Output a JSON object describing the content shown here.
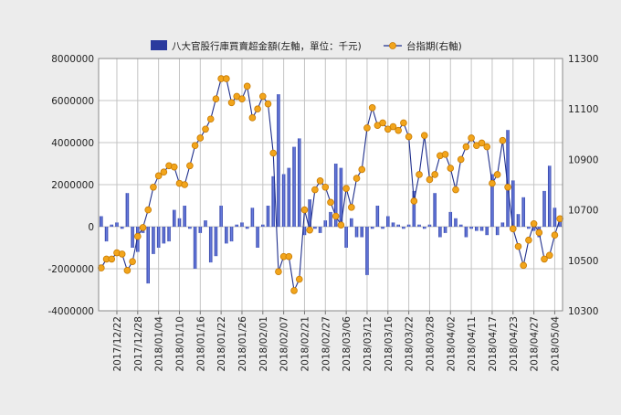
{
  "chart_data": {
    "type": "bar+line",
    "legend": {
      "position": "top",
      "entries": [
        "八大官股行庫買賣超金額(左軸，單位：千元)",
        "台指期(右軸)"
      ]
    },
    "colors": {
      "bar": "#2b3a9e",
      "bar_light": "#6f84e6",
      "line": "#1f2f8c",
      "marker": "#f2a51c",
      "marker_edge": "#c77a00",
      "plot_bg": "#ffffff",
      "page_bg": "#ececec"
    },
    "grid": true,
    "left_axis": {
      "ylim": [
        -4000000,
        8000000
      ],
      "ticks": [
        "-4000000",
        "-2000000",
        "0",
        "2000000",
        "4000000",
        "6000000",
        "8000000"
      ]
    },
    "right_axis": {
      "ylim": [
        10300,
        11300
      ],
      "ticks": [
        "10300",
        "10500",
        "10700",
        "10900",
        "11100",
        "11300"
      ]
    },
    "x_tick_labels": [
      "2017/12/22",
      "2017/12/28",
      "2018/01/04",
      "2018/01/10",
      "2018/01/16",
      "2018/01/22",
      "2018/01/26",
      "2018/02/01",
      "2018/02/07",
      "2018/02/21",
      "2018/02/27",
      "2018/03/06",
      "2018/03/12",
      "2018/03/16",
      "2018/03/22",
      "2018/03/28",
      "2018/04/02",
      "2018/04/11",
      "2018/04/17",
      "2018/04/23",
      "2018/04/27",
      "2018/05/04"
    ],
    "x_tick_index": [
      3,
      7,
      11,
      15,
      19,
      23,
      27,
      31,
      35,
      39,
      43,
      47,
      51,
      55,
      59,
      63,
      67,
      71,
      75,
      79,
      83,
      87
    ],
    "series": [
      {
        "name": "八大官股行庫買賣超金額(左軸，單位：千元)",
        "type": "bar",
        "values": [
          500000,
          -700000,
          100000,
          200000,
          -100000,
          1600000,
          -1000000,
          -1200000,
          -300000,
          -2700000,
          -1300000,
          -1000000,
          -800000,
          -700000,
          800000,
          400000,
          1000000,
          -100000,
          -2000000,
          -300000,
          300000,
          -1700000,
          -1400000,
          1000000,
          -800000,
          -700000,
          100000,
          200000,
          -100000,
          900000,
          -1000000,
          100000,
          1000000,
          2400000,
          6300000,
          2500000,
          2800000,
          3800000,
          4200000,
          -400000,
          1300000,
          -100000,
          -300000,
          300000,
          700000,
          3000000,
          2800000,
          -1000000,
          400000,
          -500000,
          -500000,
          -2300000,
          -100000,
          1000000,
          -100000,
          500000,
          200000,
          100000,
          -100000,
          100000,
          1700000,
          100000,
          -100000,
          100000,
          1600000,
          -500000,
          -300000,
          700000,
          400000,
          100000,
          -500000,
          -100000,
          -200000,
          -200000,
          -400000,
          2500000,
          -400000,
          200000,
          4600000,
          2200000,
          600000,
          1400000,
          -100000,
          -200000,
          -500000,
          1700000,
          2900000,
          900000,
          400000
        ]
      },
      {
        "name": "台指期(右軸)",
        "type": "line",
        "values": [
          10470,
          10505,
          10505,
          10530,
          10525,
          10460,
          10495,
          10595,
          10630,
          10700,
          10790,
          10835,
          10850,
          10875,
          10870,
          10805,
          10800,
          10875,
          10955,
          10985,
          11020,
          11060,
          11140,
          11220,
          11220,
          11125,
          11150,
          11140,
          11190,
          11065,
          11100,
          11150,
          11120,
          10925,
          10455,
          10515,
          10515,
          10380,
          10425,
          10700,
          10620,
          10780,
          10815,
          10790,
          10730,
          10675,
          10640,
          10785,
          10710,
          10825,
          10860,
          11025,
          11105,
          11035,
          11045,
          11020,
          11030,
          11015,
          11045,
          10990,
          10735,
          10840,
          10995,
          10820,
          10840,
          10915,
          10920,
          10865,
          10780,
          10900,
          10950,
          10985,
          10955,
          10965,
          10950,
          10805,
          10840,
          10975,
          10790,
          10625,
          10555,
          10480,
          10580,
          10645,
          10610,
          10505,
          10520,
          10600,
          10665
        ]
      }
    ]
  }
}
